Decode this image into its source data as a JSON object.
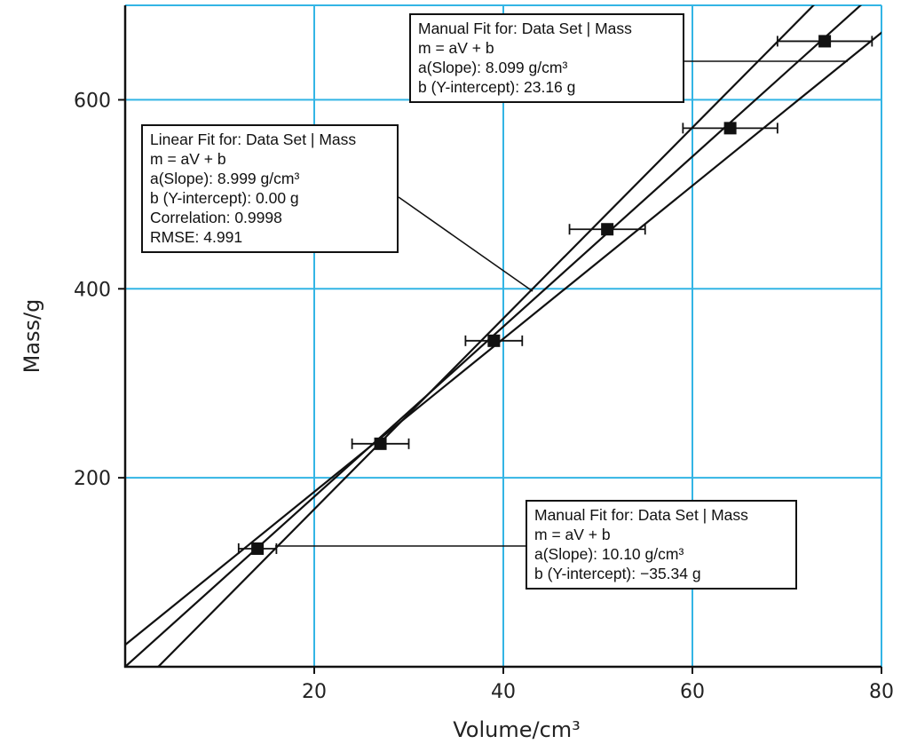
{
  "chart_data": {
    "type": "scatter",
    "xlabel": "Volume/cm³",
    "ylabel": "Mass/g",
    "xlim": [
      0,
      80
    ],
    "ylim": [
      0,
      700
    ],
    "xticks": [
      20,
      40,
      60,
      80
    ],
    "yticks": [
      200,
      400,
      600
    ],
    "grid": true,
    "grid_color": "#33b5e5",
    "points": [
      {
        "x": 14,
        "y": 125,
        "xerr": 2
      },
      {
        "x": 27,
        "y": 236,
        "xerr": 3
      },
      {
        "x": 39,
        "y": 345,
        "xerr": 3
      },
      {
        "x": 51,
        "y": 463,
        "xerr": 4
      },
      {
        "x": 64,
        "y": 570,
        "xerr": 5
      },
      {
        "x": 74,
        "y": 662,
        "xerr": 5
      }
    ],
    "fits": [
      {
        "slope": 8.999,
        "intercept": 0.0
      },
      {
        "slope": 8.099,
        "intercept": 23.16
      },
      {
        "slope": 10.1,
        "intercept": -35.34
      }
    ],
    "annotations": {
      "linear": {
        "title": "Linear Fit for: Data Set | Mass",
        "equation": "m = aV + b",
        "slope": "a(Slope): 8.999 g/cm³",
        "intercept": "b (Y-intercept): 0.00 g",
        "correlation": "Correlation: 0.9998",
        "rmse": "RMSE: 4.991"
      },
      "manual_upper": {
        "title": "Manual Fit for: Data Set | Mass",
        "equation": "m = aV + b",
        "slope": "a(Slope): 8.099 g/cm³",
        "intercept": "b (Y-intercept): 23.16 g"
      },
      "manual_lower": {
        "title": "Manual Fit for: Data Set | Mass",
        "equation": "m = aV + b",
        "slope": "a(Slope): 10.10 g/cm³",
        "intercept": "b (Y-intercept): −35.34 g"
      }
    }
  }
}
